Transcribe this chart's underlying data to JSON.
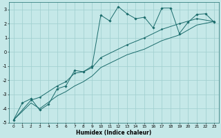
{
  "title": "",
  "xlabel": "Humidex (Indice chaleur)",
  "ylabel": "",
  "xlim": [
    -0.5,
    23.5
  ],
  "ylim": [
    -5,
    3.5
  ],
  "yticks": [
    -5,
    -4,
    -3,
    -2,
    -1,
    0,
    1,
    2,
    3
  ],
  "xticks": [
    0,
    1,
    2,
    3,
    4,
    5,
    6,
    7,
    8,
    9,
    10,
    11,
    12,
    13,
    14,
    15,
    16,
    17,
    18,
    19,
    20,
    21,
    22,
    23
  ],
  "background_color": "#c5e8e8",
  "grid_color": "#9ecece",
  "line_color": "#1a6b6b",
  "series1_x": [
    0,
    1,
    2,
    3,
    4,
    5,
    6,
    7,
    8,
    9,
    10,
    11,
    12,
    13,
    14,
    15,
    16,
    17,
    18,
    19,
    20,
    21,
    22,
    23
  ],
  "series1_y": [
    -4.8,
    -3.6,
    -3.3,
    -4.1,
    -3.7,
    -2.6,
    -2.4,
    -1.3,
    -1.4,
    -1.0,
    2.6,
    2.2,
    3.2,
    2.7,
    2.35,
    2.45,
    1.7,
    3.1,
    3.1,
    1.3,
    2.1,
    2.65,
    2.7,
    2.1
  ],
  "series2_x": [
    0,
    2,
    3,
    5,
    6,
    7,
    8,
    9,
    10,
    13,
    15,
    17,
    19,
    21,
    23
  ],
  "series2_y": [
    -4.8,
    -3.4,
    -3.2,
    -2.4,
    -2.1,
    -1.5,
    -1.4,
    -1.1,
    -0.4,
    0.5,
    1.0,
    1.6,
    2.0,
    2.35,
    2.15
  ],
  "series3_x": [
    0,
    2,
    3,
    5,
    6,
    7,
    8,
    9,
    10,
    13,
    15,
    17,
    19,
    21,
    23
  ],
  "series3_y": [
    -4.8,
    -3.6,
    -4.0,
    -3.1,
    -2.8,
    -2.4,
    -2.1,
    -1.7,
    -1.1,
    -0.2,
    0.2,
    0.8,
    1.2,
    1.9,
    2.15
  ]
}
